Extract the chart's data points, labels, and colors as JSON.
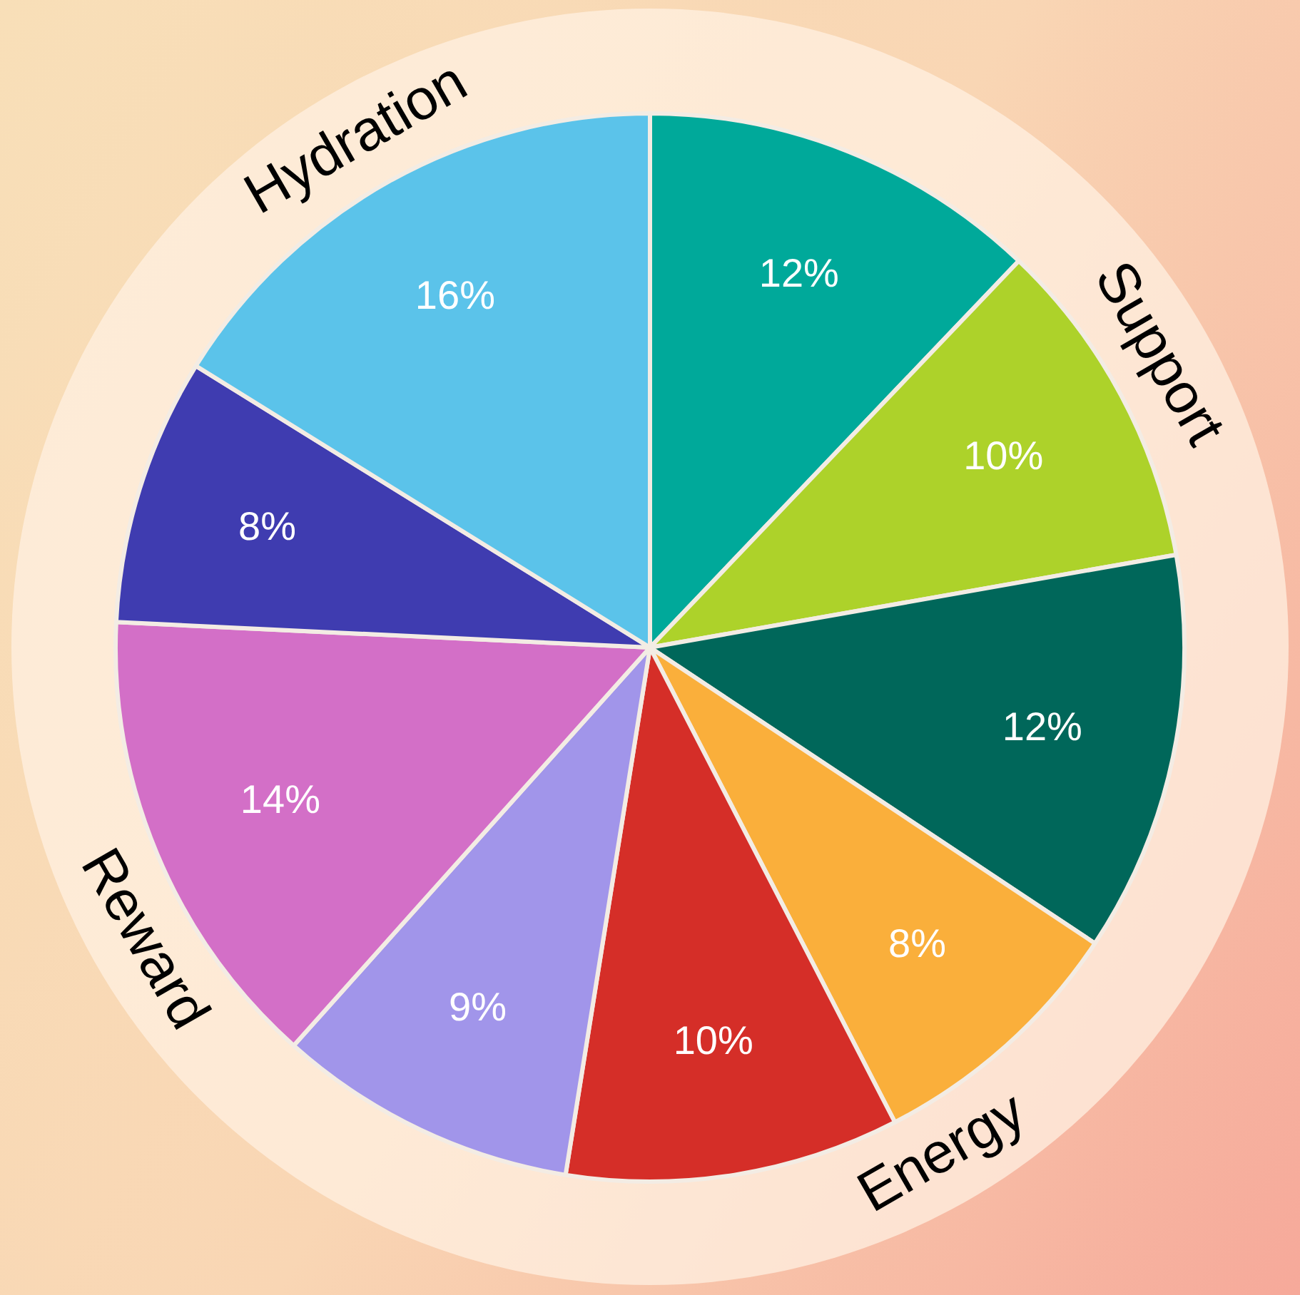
{
  "chart_data": {
    "type": "pie",
    "categories": [
      null,
      null,
      null,
      null,
      null,
      null,
      null,
      null,
      null
    ],
    "values": [
      12,
      10,
      12,
      8,
      10,
      9,
      14,
      8,
      16
    ],
    "value_labels": [
      "12%",
      "10%",
      "12%",
      "8%",
      "10%",
      "9%",
      "14%",
      "8%",
      "16%"
    ],
    "colors": [
      "#00a99a",
      "#add22a",
      "#00675a",
      "#faaf3b",
      "#d52e28",
      "#a195ea",
      "#d36fc7",
      "#3f3cb0",
      "#5bc3ea"
    ],
    "annotations": [
      "Support",
      "Energy",
      "Reward",
      "Hydration"
    ],
    "legend": false
  }
}
